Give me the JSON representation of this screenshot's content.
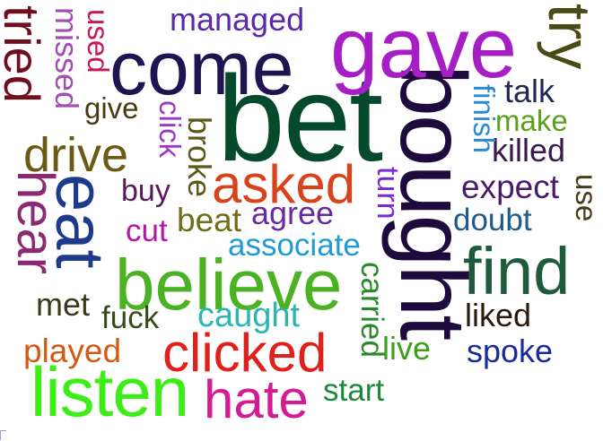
{
  "words": [
    {
      "id": "bet",
      "text": "bet",
      "color": "#064a2e"
    },
    {
      "id": "bought",
      "text": "bought",
      "color": "#1e0a3c"
    },
    {
      "id": "gave",
      "text": "gave",
      "color": "#a61fc4"
    },
    {
      "id": "come",
      "text": "come",
      "color": "#1e1450"
    },
    {
      "id": "believe",
      "text": "believe",
      "color": "#4bb323"
    },
    {
      "id": "listen",
      "text": "listen",
      "color": "#3cee16"
    },
    {
      "id": "eat",
      "text": "eat",
      "color": "#1e3a8c"
    },
    {
      "id": "find",
      "text": "find",
      "color": "#1d5b3c"
    },
    {
      "id": "clicked",
      "text": "clicked",
      "color": "#e0201a"
    },
    {
      "id": "asked",
      "text": "asked",
      "color": "#d9431c"
    },
    {
      "id": "hate",
      "text": "hate",
      "color": "#d31b93"
    },
    {
      "id": "drive",
      "text": "drive",
      "color": "#6b5a14"
    },
    {
      "id": "try",
      "text": "try",
      "color": "#4a4a14"
    },
    {
      "id": "hear",
      "text": "hear",
      "color": "#8a2a73"
    },
    {
      "id": "tried",
      "text": "tried",
      "color": "#6e0f1e"
    },
    {
      "id": "managed",
      "text": "managed",
      "color": "#5a2aa8"
    },
    {
      "id": "associate",
      "text": "associate",
      "color": "#1f9bd4"
    },
    {
      "id": "caught",
      "text": "caught",
      "color": "#2bb6b1"
    },
    {
      "id": "missed",
      "text": "missed",
      "color": "#a24fb2"
    },
    {
      "id": "used",
      "text": "used",
      "color": "#c21a5a"
    },
    {
      "id": "give",
      "text": "give",
      "color": "#4a3a12"
    },
    {
      "id": "click",
      "text": "click",
      "color": "#9a3ac4"
    },
    {
      "id": "broke",
      "text": "broke",
      "color": "#5a5a1a"
    },
    {
      "id": "buy",
      "text": "buy",
      "color": "#5a1a5a"
    },
    {
      "id": "cut",
      "text": "cut",
      "color": "#b319a8"
    },
    {
      "id": "beat",
      "text": "beat",
      "color": "#6e6e1a"
    },
    {
      "id": "agree",
      "text": "agree",
      "color": "#6a2aa0"
    },
    {
      "id": "turn",
      "text": "turn",
      "color": "#7a2ad4"
    },
    {
      "id": "talk",
      "text": "talk",
      "color": "#1e2a50"
    },
    {
      "id": "finish",
      "text": "finish",
      "color": "#2a8ad4"
    },
    {
      "id": "make",
      "text": "make",
      "color": "#5aa01a"
    },
    {
      "id": "killed",
      "text": "killed",
      "color": "#3a1a4a"
    },
    {
      "id": "expect",
      "text": "expect",
      "color": "#4a1a6a"
    },
    {
      "id": "use",
      "text": "use",
      "color": "#4a3a1a"
    },
    {
      "id": "doubt",
      "text": "doubt",
      "color": "#1e5a8a"
    },
    {
      "id": "met",
      "text": "met",
      "color": "#3a3a1a"
    },
    {
      "id": "fuck",
      "text": "fuck",
      "color": "#3a4a1a"
    },
    {
      "id": "played",
      "text": "played",
      "color": "#d45a14"
    },
    {
      "id": "carried",
      "text": "carried",
      "color": "#2a8a2a"
    },
    {
      "id": "live",
      "text": "live",
      "color": "#3aa01a"
    },
    {
      "id": "liked",
      "text": "liked",
      "color": "#2a1a0a"
    },
    {
      "id": "spoke",
      "text": "spoke",
      "color": "#1a2a9a"
    },
    {
      "id": "start",
      "text": "start",
      "color": "#1a8a3a"
    }
  ]
}
